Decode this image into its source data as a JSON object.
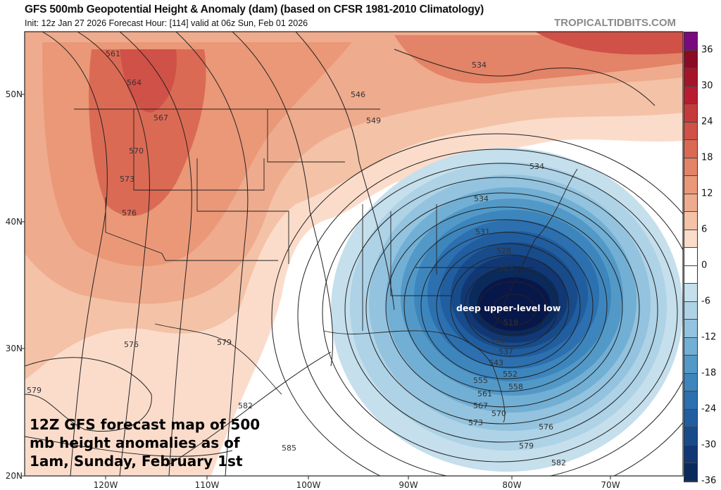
{
  "header": {
    "title": "GFS 500mb Geopotential Height & Anomaly (dam) (based on CFSR 1981-2010 Climatology)",
    "subtitle": "Init: 12z Jan 27 2026   Forecast Hour: [114]   valid at 06z Sun, Feb 01 2026",
    "brand": "TROPICALTIDBITS.COM"
  },
  "axes": {
    "lat_labels": [
      "50N",
      "40N",
      "30N",
      "20N"
    ],
    "lon_labels": [
      "120W",
      "110W",
      "100W",
      "90W",
      "80W",
      "70W"
    ]
  },
  "colorbar": {
    "labels": [
      "36",
      "30",
      "24",
      "18",
      "12",
      "6",
      "0",
      "-6",
      "-12",
      "-18",
      "-24",
      "-30",
      "-36"
    ],
    "colors": [
      "#7b0a7f",
      "#8b0a26",
      "#a51429",
      "#b81d2f",
      "#c53a3a",
      "#d05147",
      "#db6a55",
      "#e38368",
      "#ea9878",
      "#efab8d",
      "#f4c2a6",
      "#fbdccb",
      "#ffffff",
      "#ffffff",
      "#c5dfec",
      "#aed2e6",
      "#93c3de",
      "#72afd4",
      "#5399c8",
      "#3d86bd",
      "#2c70b0",
      "#215ea0",
      "#184b8a",
      "#113874",
      "#0b2a5c",
      "#08174a"
    ]
  },
  "contour_labels": [
    "561",
    "564",
    "567",
    "570",
    "573",
    "576",
    "534",
    "546",
    "549",
    "534",
    "534",
    "531",
    "528",
    "525",
    "519",
    "531",
    "537",
    "543",
    "552",
    "555",
    "558",
    "561",
    "567",
    "570",
    "573",
    "576",
    "579",
    "582",
    "576",
    "579",
    "579",
    "582",
    "585"
  ],
  "annotations": {
    "low_label": "deep upper-level low",
    "caption": [
      "12Z GFS forecast map of 500",
      "mb height anomalies as of",
      "1am, Sunday, February 1st"
    ]
  }
}
